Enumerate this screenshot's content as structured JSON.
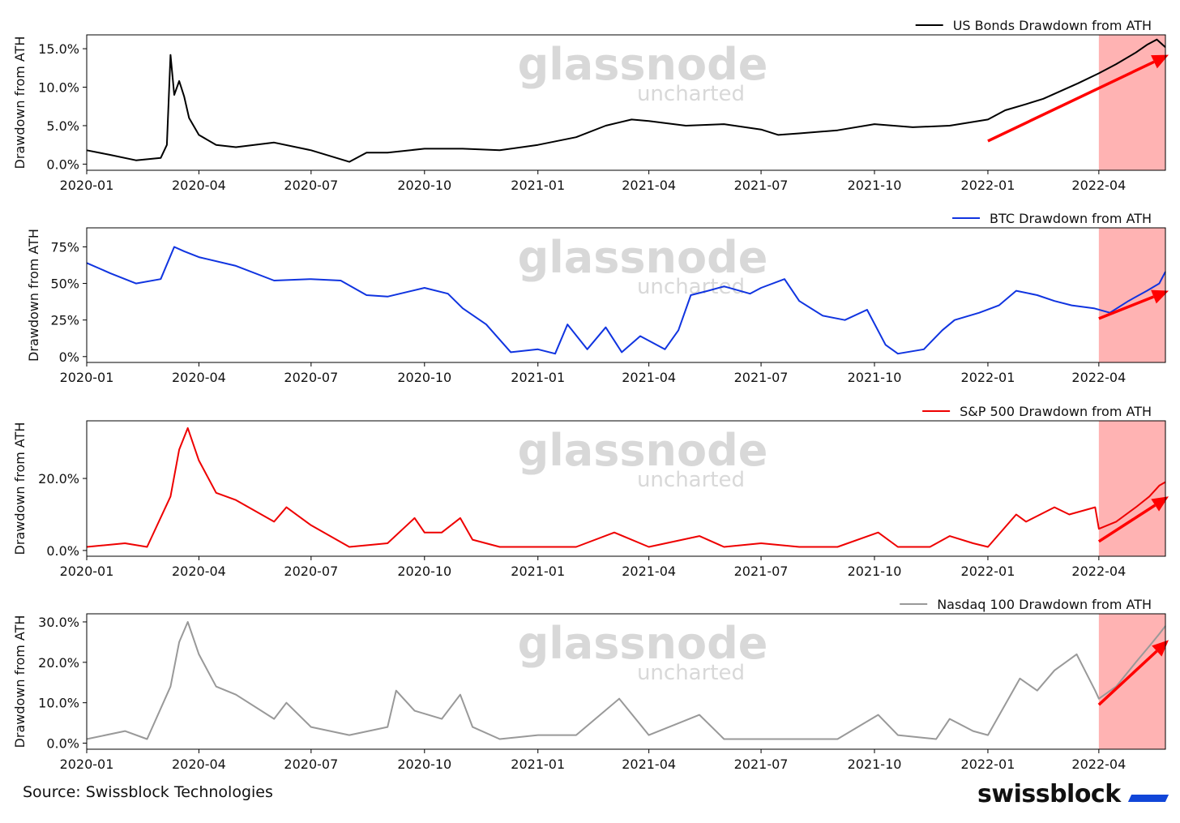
{
  "footer": {
    "source": "Source: Swissblock Technologies",
    "brand": "swissblock"
  },
  "watermark": {
    "line1": "glassnode",
    "line2": "uncharted"
  },
  "highlight_color": "#ffb3b3",
  "arrow_color": "#ff0000",
  "x_ticks": [
    "2020-01",
    "2020-04",
    "2020-07",
    "2020-10",
    "2021-01",
    "2021-04",
    "2021-07",
    "2021-10",
    "2022-01",
    "2022-04"
  ],
  "chart_data": [
    {
      "type": "line",
      "legend": "US Bonds Drawdown from ATH",
      "ylabel": "Drawdown from ATH",
      "color": "#000000",
      "yformat": "pct1",
      "yticks": [
        0,
        5,
        10,
        15
      ],
      "ylim": [
        -0.8,
        16.8
      ],
      "xlim": [
        "2020-01-01",
        "2022-05-25"
      ],
      "highlight": [
        "2022-04-01",
        "2022-05-25"
      ],
      "arrow": {
        "from": [
          "2022-01-01",
          3.0
        ],
        "to": [
          "2022-05-25",
          14.2
        ]
      },
      "x": [
        "2020-01-01",
        "2020-01-20",
        "2020-02-10",
        "2020-03-01",
        "2020-03-06",
        "2020-03-09",
        "2020-03-12",
        "2020-03-16",
        "2020-03-20",
        "2020-03-24",
        "2020-04-01",
        "2020-04-15",
        "2020-05-01",
        "2020-06-01",
        "2020-07-01",
        "2020-08-01",
        "2020-08-15",
        "2020-09-01",
        "2020-10-01",
        "2020-11-01",
        "2020-12-01",
        "2021-01-01",
        "2021-02-01",
        "2021-02-25",
        "2021-03-18",
        "2021-04-01",
        "2021-05-01",
        "2021-06-01",
        "2021-07-01",
        "2021-07-15",
        "2021-08-01",
        "2021-09-01",
        "2021-10-01",
        "2021-11-01",
        "2021-12-01",
        "2022-01-01",
        "2022-01-15",
        "2022-02-01",
        "2022-02-15",
        "2022-03-01",
        "2022-03-15",
        "2022-04-01",
        "2022-04-15",
        "2022-05-01",
        "2022-05-10",
        "2022-05-18",
        "2022-05-25"
      ],
      "values": [
        1.8,
        1.2,
        0.5,
        0.8,
        2.5,
        14.2,
        9.0,
        10.8,
        8.8,
        6.0,
        3.8,
        2.5,
        2.2,
        2.8,
        1.8,
        0.3,
        1.5,
        1.5,
        2.0,
        2.0,
        1.8,
        2.5,
        3.5,
        5.0,
        5.8,
        5.6,
        5.0,
        5.2,
        4.5,
        3.8,
        4.0,
        4.4,
        5.2,
        4.8,
        5.0,
        5.8,
        7.0,
        7.8,
        8.5,
        9.5,
        10.5,
        11.8,
        13.0,
        14.5,
        15.5,
        16.2,
        15.2
      ]
    },
    {
      "type": "line",
      "legend": "BTC Drawdown from ATH",
      "ylabel": "Drawdown from ATH",
      "color": "#1034e0",
      "yformat": "pct0",
      "yticks": [
        0,
        25,
        50,
        75
      ],
      "ylim": [
        -4,
        88
      ],
      "xlim": [
        "2020-01-01",
        "2022-05-25"
      ],
      "highlight": [
        "2022-04-01",
        "2022-05-25"
      ],
      "arrow": {
        "from": [
          "2022-04-01",
          26
        ],
        "to": [
          "2022-05-25",
          45
        ]
      },
      "x": [
        "2020-01-01",
        "2020-01-20",
        "2020-02-10",
        "2020-03-01",
        "2020-03-12",
        "2020-03-20",
        "2020-04-01",
        "2020-05-01",
        "2020-06-01",
        "2020-07-01",
        "2020-07-25",
        "2020-08-15",
        "2020-09-01",
        "2020-10-01",
        "2020-10-20",
        "2020-11-01",
        "2020-11-20",
        "2020-12-10",
        "2021-01-01",
        "2021-01-15",
        "2021-01-25",
        "2021-02-10",
        "2021-02-25",
        "2021-03-10",
        "2021-03-25",
        "2021-04-14",
        "2021-04-25",
        "2021-05-05",
        "2021-05-19",
        "2021-06-01",
        "2021-06-22",
        "2021-07-01",
        "2021-07-20",
        "2021-08-01",
        "2021-08-20",
        "2021-09-07",
        "2021-09-25",
        "2021-10-10",
        "2021-10-20",
        "2021-11-10",
        "2021-11-25",
        "2021-12-05",
        "2021-12-25",
        "2022-01-10",
        "2022-01-24",
        "2022-02-10",
        "2022-02-24",
        "2022-03-10",
        "2022-03-28",
        "2022-04-10",
        "2022-04-25",
        "2022-05-10",
        "2022-05-20",
        "2022-05-25"
      ],
      "values": [
        64,
        57,
        50,
        53,
        75,
        72,
        68,
        62,
        52,
        53,
        52,
        42,
        41,
        47,
        43,
        33,
        22,
        3,
        5,
        2,
        22,
        5,
        20,
        3,
        14,
        5,
        18,
        42,
        45,
        48,
        43,
        47,
        53,
        38,
        28,
        25,
        32,
        8,
        2,
        5,
        18,
        25,
        30,
        35,
        45,
        42,
        38,
        35,
        33,
        30,
        38,
        45,
        50,
        58
      ]
    },
    {
      "type": "line",
      "legend": "S&P 500 Drawdown from ATH",
      "ylabel": "Drawdown from ATH",
      "color": "#ee0000",
      "yformat": "pct1",
      "yticks": [
        0,
        20
      ],
      "ylim": [
        -1.6,
        36
      ],
      "xlim": [
        "2020-01-01",
        "2022-05-25"
      ],
      "highlight": [
        "2022-04-01",
        "2022-05-25"
      ],
      "arrow": {
        "from": [
          "2022-04-01",
          2.5
        ],
        "to": [
          "2022-05-25",
          15.0
        ]
      },
      "x": [
        "2020-01-01",
        "2020-02-01",
        "2020-02-19",
        "2020-03-09",
        "2020-03-16",
        "2020-03-23",
        "2020-04-01",
        "2020-04-15",
        "2020-05-01",
        "2020-06-01",
        "2020-06-11",
        "2020-07-01",
        "2020-08-01",
        "2020-09-01",
        "2020-09-23",
        "2020-10-01",
        "2020-10-15",
        "2020-10-30",
        "2020-11-09",
        "2020-12-01",
        "2021-01-01",
        "2021-02-01",
        "2021-03-04",
        "2021-04-01",
        "2021-05-12",
        "2021-06-01",
        "2021-07-01",
        "2021-08-01",
        "2021-09-01",
        "2021-10-04",
        "2021-10-20",
        "2021-11-15",
        "2021-12-01",
        "2021-12-20",
        "2022-01-01",
        "2022-01-24",
        "2022-02-01",
        "2022-02-24",
        "2022-03-08",
        "2022-03-29",
        "2022-04-01",
        "2022-04-15",
        "2022-05-01",
        "2022-05-12",
        "2022-05-20",
        "2022-05-25"
      ],
      "values": [
        1,
        2,
        1,
        15,
        28,
        34,
        25,
        16,
        14,
        8,
        12,
        7,
        1,
        2,
        9,
        5,
        5,
        9,
        3,
        1,
        1,
        1,
        5,
        1,
        4,
        1,
        2,
        1,
        1,
        5,
        1,
        1,
        4,
        2,
        1,
        10,
        8,
        12,
        10,
        12,
        6,
        8,
        12,
        15,
        18,
        19
      ]
    },
    {
      "type": "line",
      "legend": "Nasdaq 100 Drawdown from ATH",
      "ylabel": "Drawdown from ATH",
      "color": "#999999",
      "yformat": "pct1",
      "yticks": [
        0,
        10,
        20,
        30
      ],
      "ylim": [
        -1.5,
        32
      ],
      "xlim": [
        "2020-01-01",
        "2022-05-25"
      ],
      "highlight": [
        "2022-04-01",
        "2022-05-25"
      ],
      "arrow": {
        "from": [
          "2022-04-01",
          9.5
        ],
        "to": [
          "2022-05-25",
          25.5
        ]
      },
      "x": [
        "2020-01-01",
        "2020-02-01",
        "2020-02-19",
        "2020-03-09",
        "2020-03-16",
        "2020-03-23",
        "2020-04-01",
        "2020-04-15",
        "2020-05-01",
        "2020-06-01",
        "2020-06-11",
        "2020-07-01",
        "2020-08-01",
        "2020-09-01",
        "2020-09-08",
        "2020-09-23",
        "2020-10-15",
        "2020-10-30",
        "2020-11-09",
        "2020-12-01",
        "2021-01-01",
        "2021-02-01",
        "2021-03-08",
        "2021-04-01",
        "2021-05-12",
        "2021-06-01",
        "2021-07-01",
        "2021-08-01",
        "2021-09-01",
        "2021-10-04",
        "2021-10-20",
        "2021-11-20",
        "2021-12-01",
        "2021-12-20",
        "2022-01-01",
        "2022-01-27",
        "2022-02-10",
        "2022-02-24",
        "2022-03-14",
        "2022-03-29",
        "2022-04-01",
        "2022-04-15",
        "2022-05-01",
        "2022-05-12",
        "2022-05-20",
        "2022-05-25"
      ],
      "values": [
        1,
        3,
        1,
        14,
        25,
        30,
        22,
        14,
        12,
        6,
        10,
        4,
        2,
        4,
        13,
        8,
        6,
        12,
        4,
        1,
        2,
        2,
        11,
        2,
        7,
        1,
        1,
        1,
        1,
        7,
        2,
        1,
        6,
        3,
        2,
        16,
        13,
        18,
        22,
        13,
        11,
        14,
        20,
        24,
        27,
        29
      ]
    }
  ]
}
